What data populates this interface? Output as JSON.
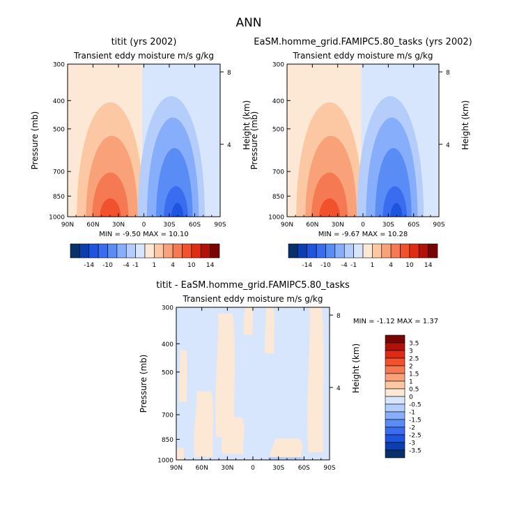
{
  "figure": {
    "title": "ANN"
  },
  "colors": {
    "neg": [
      "#08306b",
      "#0b3fb0",
      "#1f54de",
      "#3a6cf0",
      "#5a8cf5",
      "#87aefa",
      "#b4cdfb",
      "#d7e6fc"
    ],
    "pos": [
      "#fde8d6",
      "#fbc8a3",
      "#f9a27a",
      "#f57a53",
      "#f2512d",
      "#e02b14",
      "#b21108",
      "#7a0404"
    ]
  },
  "chart_data": [
    {
      "type": "heatmap",
      "title": "titit (yrs 2002)",
      "subtitle": "Transient eddy moisture m/s g/kg",
      "xlabel": "",
      "ylabel": "Pressure (mb)",
      "y2label": "Height (km)",
      "x_ticks": [
        "90N",
        "60N",
        "30N",
        "0",
        "30S",
        "60S",
        "90S"
      ],
      "y_ticks": [
        300,
        400,
        500,
        700,
        850,
        1000
      ],
      "y2_ticks": [
        4,
        8
      ],
      "ylim": [
        1000,
        300
      ],
      "stats": "MIN =  -9.50   MAX =   10.10",
      "min": -9.5,
      "max": 10.1,
      "colorbar_levels": [
        "-14",
        "-10",
        "-4",
        "-1",
        "1",
        "4",
        "10",
        "14"
      ],
      "colorbar_orientation": "horizontal",
      "pattern": "dipole"
    },
    {
      "type": "heatmap",
      "title": "EaSM.homme_grid.FAMIPC5.80_tasks (yrs 2002)",
      "subtitle": "Transient eddy moisture m/s g/kg",
      "xlabel": "",
      "ylabel": "Pressure (mb)",
      "y2label": "Height (km)",
      "x_ticks": [
        "90N",
        "60N",
        "30N",
        "0",
        "30S",
        "60S",
        "90S"
      ],
      "y_ticks": [
        300,
        400,
        500,
        700,
        850,
        1000
      ],
      "y2_ticks": [
        4,
        8
      ],
      "ylim": [
        1000,
        300
      ],
      "stats": "MIN =  -9.67   MAX =   10.28",
      "min": -9.67,
      "max": 10.28,
      "colorbar_levels": [
        "-14",
        "-10",
        "-4",
        "-1",
        "1",
        "4",
        "10",
        "14"
      ],
      "colorbar_orientation": "horizontal",
      "pattern": "dipole"
    },
    {
      "type": "heatmap",
      "title": "titit - EaSM.homme_grid.FAMIPC5.80_tasks",
      "subtitle": "Transient eddy moisture m/s g/kg",
      "xlabel": "",
      "ylabel": "Pressure (mb)",
      "y2label": "Height (km)",
      "x_ticks": [
        "90N",
        "60N",
        "30N",
        "0",
        "30S",
        "60S",
        "90S"
      ],
      "y_ticks": [
        300,
        400,
        500,
        700,
        850,
        1000
      ],
      "y2_ticks": [
        4,
        8
      ],
      "ylim": [
        1000,
        300
      ],
      "stats": "MIN =  -1.12   MAX =   1.37",
      "min": -1.12,
      "max": 1.37,
      "colorbar_levels": [
        "3.5",
        "3",
        "2.5",
        "2",
        "1.5",
        "1",
        "0.5",
        "0",
        "-0.5",
        "-1",
        "-1.5",
        "-2",
        "-2.5",
        "-3",
        "-3.5"
      ],
      "colorbar_orientation": "vertical",
      "pattern": "difference"
    }
  ]
}
